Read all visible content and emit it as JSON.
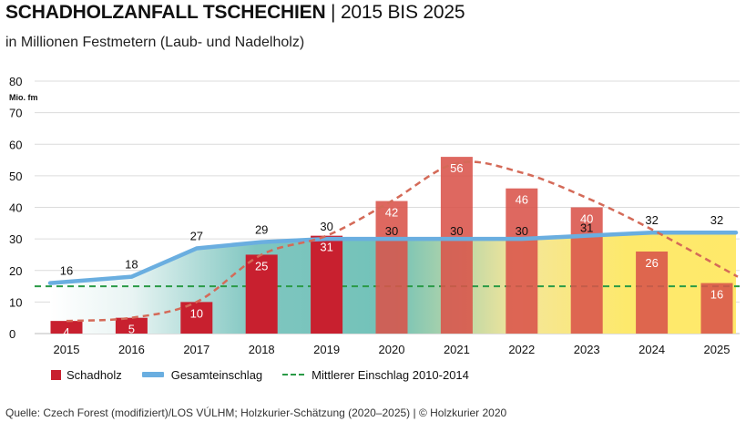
{
  "header": {
    "title_bold": "SCHADHOLZANFALL TSCHECHIEN",
    "title_sep": " | ",
    "title_rest": "2015 BIS 2025",
    "subtitle": "in Millionen Festmetern (Laub- und Nadelholz)"
  },
  "legend": {
    "schadholz": "Schadholz",
    "gesamt": "Gesamteinschlag",
    "mittel": "Mittlerer Einschlag 2010-2014"
  },
  "source": "Quelle: Czech Forest (modifiziert)/LOS VÚLHM; Holzkurier-Schätzung (2020–2025) | © Holzkurier 2020",
  "colors": {
    "bar_actual": "#c8202f",
    "bar_estimate": "#d9534a",
    "gesamt_line": "#6aaee0",
    "trend_dash": "#d46a58",
    "mean_dash": "#2a9a46"
  },
  "chart_data": {
    "type": "bar",
    "unit_label": "Mio. fm",
    "categories": [
      "2015",
      "2016",
      "2017",
      "2018",
      "2019",
      "2020",
      "2021",
      "2022",
      "2023",
      "2024",
      "2025"
    ],
    "ylim": [
      0,
      80
    ],
    "yticks": [
      "0",
      "10",
      "20",
      "30",
      "40",
      "50",
      "60",
      "70",
      "80"
    ],
    "series": [
      {
        "name": "Schadholz",
        "kind": "bar",
        "values": [
          4,
          5,
          10,
          25,
          31,
          42,
          56,
          46,
          40,
          26,
          16
        ]
      },
      {
        "name": "Gesamteinschlag",
        "kind": "line",
        "values": [
          16,
          18,
          27,
          29,
          30,
          30,
          30,
          30,
          31,
          32,
          32
        ]
      },
      {
        "name": "Mittlerer Einschlag 2010-2014",
        "kind": "hline",
        "value": 15
      },
      {
        "name": "Trend Schadholz",
        "kind": "dashed-curve",
        "values": [
          4,
          5,
          10,
          25,
          31,
          42,
          54,
          51,
          43,
          33,
          18
        ]
      }
    ],
    "gesamt_labels": [
      "16",
      "18",
      "27",
      "29",
      "30",
      "30",
      "30",
      "30",
      "31",
      "32",
      "32"
    ],
    "bar_labels": [
      "4",
      "5",
      "10",
      "25",
      "31",
      "42",
      "56",
      "46",
      "40",
      "26",
      "16"
    ],
    "estimate_from_index": 5
  }
}
